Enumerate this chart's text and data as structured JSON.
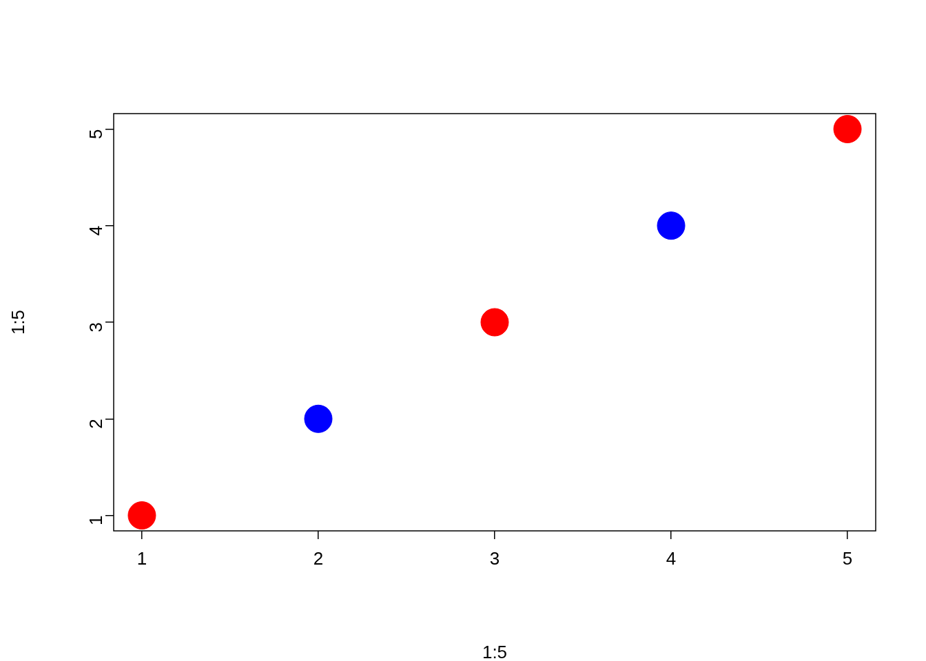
{
  "chart_data": {
    "type": "scatter",
    "xlabel": "1:5",
    "ylabel": "1:5",
    "x": [
      1,
      2,
      3,
      4,
      5
    ],
    "values": [
      1,
      2,
      3,
      4,
      5
    ],
    "colors": [
      "#ff0000",
      "#0000ff",
      "#ff0000",
      "#0000ff",
      "#ff0000"
    ],
    "xlim": [
      0.84,
      5.16
    ],
    "ylim": [
      0.84,
      5.16
    ],
    "xticks": [
      1,
      2,
      3,
      4,
      5
    ],
    "yticks": [
      1,
      2,
      3,
      4,
      5
    ],
    "marker": "circle",
    "grid": false,
    "legend": false
  }
}
